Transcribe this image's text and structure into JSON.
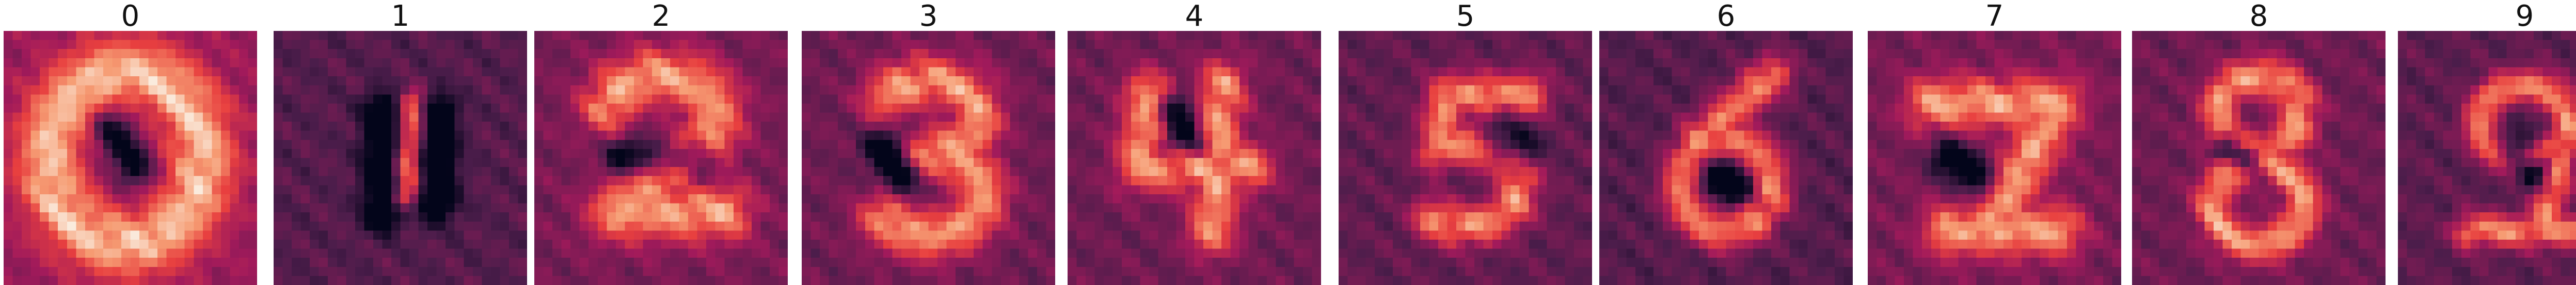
{
  "chart_data": {
    "type": "heatmap",
    "colormap": [
      "#03051a",
      "#4c1d4b",
      "#a11a5b",
      "#e83f3f",
      "#f69c73",
      "#faebdd"
    ],
    "panels": [
      {
        "title": "0",
        "pattern": "ring",
        "bg": 0.38
      },
      {
        "title": "1",
        "pattern": "stroke",
        "bg": 0.22
      },
      {
        "title": "2",
        "pattern": "two",
        "bg": 0.3
      },
      {
        "title": "3",
        "pattern": "three",
        "bg": 0.28
      },
      {
        "title": "4",
        "pattern": "four",
        "bg": 0.28
      },
      {
        "title": "5",
        "pattern": "five",
        "bg": 0.25
      },
      {
        "title": "6",
        "pattern": "six",
        "bg": 0.22
      },
      {
        "title": "7",
        "pattern": "seven",
        "bg": 0.3
      },
      {
        "title": "8",
        "pattern": "eight",
        "bg": 0.28
      },
      {
        "title": "9",
        "pattern": "nine",
        "bg": 0.24
      }
    ]
  }
}
